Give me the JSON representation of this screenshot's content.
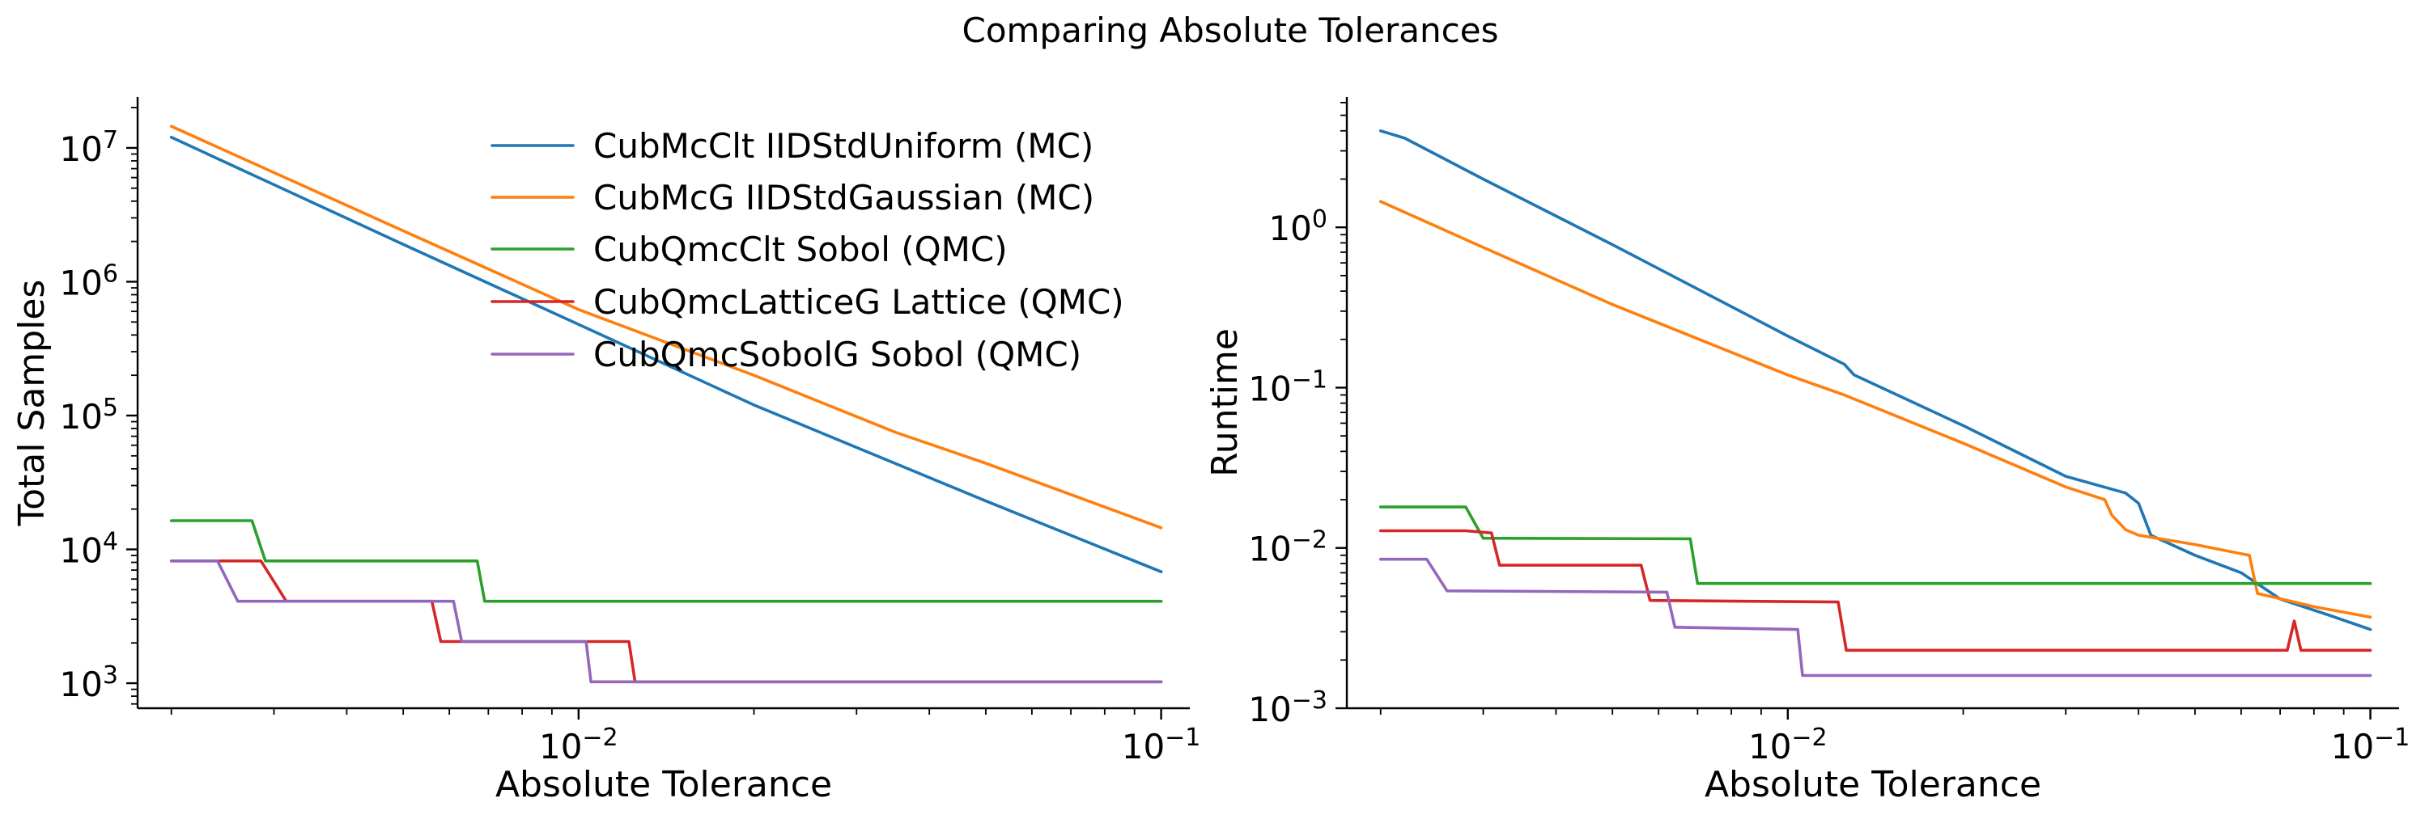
{
  "figure_title": "Comparing Absolute Tolerances",
  "chart_data": [
    {
      "type": "line",
      "xlabel": "Absolute Tolerance",
      "ylabel": "Total Samples",
      "xscale": "log",
      "yscale": "log",
      "xlim": [
        0.00175,
        0.112
      ],
      "ylim": [
        650,
        24000000
      ],
      "xticks": [
        {
          "value": 0.01,
          "base": "10",
          "exp": "−2"
        },
        {
          "value": 0.1,
          "base": "10",
          "exp": "−1"
        }
      ],
      "yticks": [
        {
          "value": 1000,
          "base": "10",
          "exp": "3"
        },
        {
          "value": 10000,
          "base": "10",
          "exp": "4"
        },
        {
          "value": 100000,
          "base": "10",
          "exp": "5"
        },
        {
          "value": 1000000,
          "base": "10",
          "exp": "6"
        },
        {
          "value": 10000000,
          "base": "10",
          "exp": "7"
        }
      ],
      "grid": false,
      "legend_position": "upper-right",
      "series": [
        {
          "name": "CubMcClt IIDStdUniform (MC)",
          "color": "#1f77b4",
          "points": [
            [
              0.002,
              12000000
            ],
            [
              0.005,
              1900000
            ],
            [
              0.01,
              480000
            ],
            [
              0.02,
              120000
            ],
            [
              0.05,
              23000
            ],
            [
              0.1,
              6800
            ]
          ]
        },
        {
          "name": "CubMcG IIDStdGaussian (MC)",
          "color": "#ff7f0e",
          "points": [
            [
              0.002,
              14500000
            ],
            [
              0.005,
              2400000
            ],
            [
              0.01,
              620000
            ],
            [
              0.02,
              200000
            ],
            [
              0.035,
              75000
            ],
            [
              0.05,
              44000
            ],
            [
              0.1,
              14500
            ]
          ]
        },
        {
          "name": "CubQmcClt Sobol (QMC)",
          "color": "#2ca02c",
          "points": [
            [
              0.002,
              16384
            ],
            [
              0.00275,
              16384
            ],
            [
              0.0029,
              8192
            ],
            [
              0.0067,
              8192
            ],
            [
              0.0069,
              4096
            ],
            [
              0.1,
              4096
            ]
          ]
        },
        {
          "name": "CubQmcLatticeG Lattice (QMC)",
          "color": "#d62728",
          "points": [
            [
              0.002,
              8192
            ],
            [
              0.00285,
              8192
            ],
            [
              0.00315,
              4096
            ],
            [
              0.0056,
              4096
            ],
            [
              0.0058,
              2048
            ],
            [
              0.0122,
              2048
            ],
            [
              0.0125,
              1024
            ],
            [
              0.1,
              1024
            ]
          ]
        },
        {
          "name": "CubQmcSobolG Sobol (QMC)",
          "color": "#9467bd",
          "points": [
            [
              0.002,
              8192
            ],
            [
              0.0024,
              8192
            ],
            [
              0.0026,
              4096
            ],
            [
              0.0061,
              4096
            ],
            [
              0.0063,
              2048
            ],
            [
              0.0103,
              2048
            ],
            [
              0.0105,
              1024
            ],
            [
              0.1,
              1024
            ]
          ]
        }
      ]
    },
    {
      "type": "line",
      "xlabel": "Absolute Tolerance",
      "ylabel": "Runtime",
      "xscale": "log",
      "yscale": "log",
      "xlim": [
        0.00175,
        0.112
      ],
      "ylim": [
        0.001,
        6.5
      ],
      "xticks": [
        {
          "value": 0.01,
          "base": "10",
          "exp": "−2"
        },
        {
          "value": 0.1,
          "base": "10",
          "exp": "−1"
        }
      ],
      "yticks": [
        {
          "value": 0.001,
          "base": "10",
          "exp": "−3"
        },
        {
          "value": 0.01,
          "base": "10",
          "exp": "−2"
        },
        {
          "value": 0.1,
          "base": "10",
          "exp": "−1"
        },
        {
          "value": 1,
          "base": "10",
          "exp": "0"
        }
      ],
      "grid": false,
      "legend_position": "none",
      "series": [
        {
          "name": "CubMcClt IIDStdUniform (MC)",
          "color": "#1f77b4",
          "points": [
            [
              0.002,
              4.0
            ],
            [
              0.0022,
              3.6
            ],
            [
              0.003,
              2.0
            ],
            [
              0.005,
              0.78
            ],
            [
              0.01,
              0.21
            ],
            [
              0.0125,
              0.14
            ],
            [
              0.013,
              0.12
            ],
            [
              0.02,
              0.058
            ],
            [
              0.03,
              0.028
            ],
            [
              0.038,
              0.022
            ],
            [
              0.04,
              0.019
            ],
            [
              0.042,
              0.012
            ],
            [
              0.05,
              0.009
            ],
            [
              0.06,
              0.007
            ],
            [
              0.07,
              0.0048
            ],
            [
              0.085,
              0.0038
            ],
            [
              0.1,
              0.0031
            ]
          ]
        },
        {
          "name": "CubMcG IIDStdGaussian (MC)",
          "color": "#ff7f0e",
          "points": [
            [
              0.002,
              1.45
            ],
            [
              0.003,
              0.75
            ],
            [
              0.005,
              0.33
            ],
            [
              0.01,
              0.12
            ],
            [
              0.0125,
              0.09
            ],
            [
              0.02,
              0.045
            ],
            [
              0.03,
              0.024
            ],
            [
              0.035,
              0.02
            ],
            [
              0.036,
              0.016
            ],
            [
              0.038,
              0.013
            ],
            [
              0.04,
              0.012
            ],
            [
              0.05,
              0.0105
            ],
            [
              0.06,
              0.0092
            ],
            [
              0.062,
              0.009
            ],
            [
              0.064,
              0.0052
            ],
            [
              0.08,
              0.0043
            ],
            [
              0.1,
              0.0037
            ]
          ]
        },
        {
          "name": "CubQmcClt Sobol (QMC)",
          "color": "#2ca02c",
          "points": [
            [
              0.002,
              0.018
            ],
            [
              0.0028,
              0.018
            ],
            [
              0.003,
              0.0115
            ],
            [
              0.0068,
              0.0114
            ],
            [
              0.007,
              0.006
            ],
            [
              0.1,
              0.006
            ]
          ]
        },
        {
          "name": "CubQmcLatticeG Lattice (QMC)",
          "color": "#d62728",
          "points": [
            [
              0.002,
              0.0128
            ],
            [
              0.0028,
              0.0128
            ],
            [
              0.0031,
              0.0124
            ],
            [
              0.0032,
              0.0078
            ],
            [
              0.0056,
              0.0078
            ],
            [
              0.0058,
              0.0047
            ],
            [
              0.0122,
              0.0046
            ],
            [
              0.0126,
              0.0023
            ],
            [
              0.072,
              0.0023
            ],
            [
              0.074,
              0.0035
            ],
            [
              0.076,
              0.0023
            ],
            [
              0.1,
              0.0023
            ]
          ]
        },
        {
          "name": "CubQmcSobolG Sobol (QMC)",
          "color": "#9467bd",
          "points": [
            [
              0.002,
              0.0085
            ],
            [
              0.0024,
              0.0085
            ],
            [
              0.0026,
              0.0054
            ],
            [
              0.0062,
              0.0053
            ],
            [
              0.0064,
              0.0032
            ],
            [
              0.0104,
              0.0031
            ],
            [
              0.0106,
              0.0016
            ],
            [
              0.1,
              0.0016
            ]
          ]
        }
      ]
    }
  ]
}
